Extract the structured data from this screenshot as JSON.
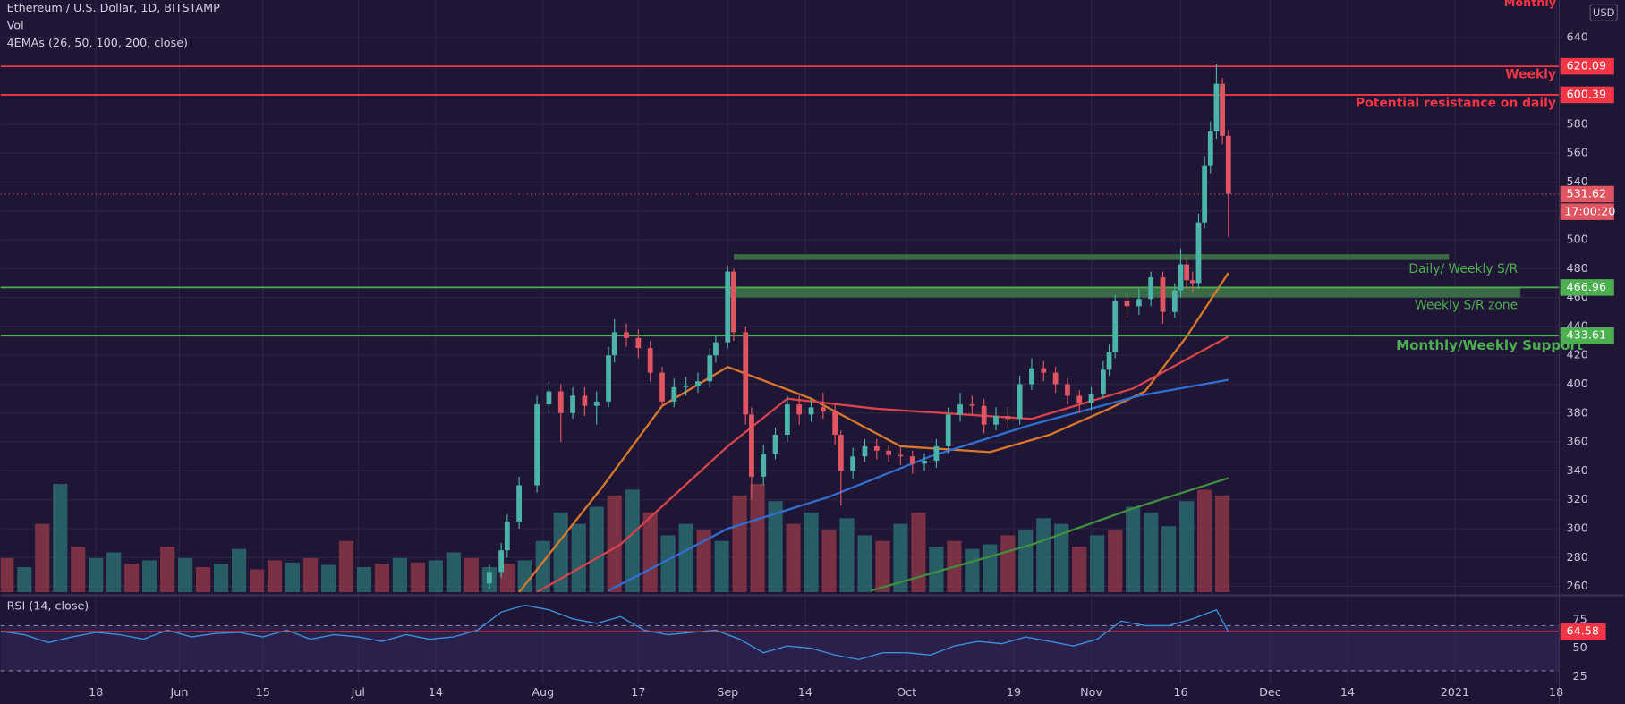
{
  "chart_data": [
    {
      "type": "candlestick",
      "title": "Ethereum / U.S. Dollar, 1D, BITSTAMP",
      "ema_label": "4EMAs (26, 50, 100, 200, close)",
      "currency": "USD",
      "countdown": "17:00:20",
      "xlim": [
        -16,
        245.5
      ],
      "ylim": [
        256,
        666
      ],
      "yticks": [
        260,
        280,
        300,
        320,
        340,
        360,
        380,
        400,
        420,
        440,
        460,
        480,
        500,
        520,
        540,
        560,
        580,
        600,
        620,
        640
      ],
      "grid": true,
      "up_color": "#4bb3a8",
      "down_color": "#e05561",
      "x": [
        66,
        68,
        69,
        71,
        74,
        76,
        78,
        80,
        82,
        84,
        86,
        87,
        89,
        91,
        93,
        95,
        97,
        99,
        101,
        103,
        104,
        106,
        107,
        109,
        110,
        112,
        114,
        116,
        118,
        120,
        122,
        124,
        125,
        127,
        129,
        131,
        133,
        135,
        137,
        139,
        141,
        143,
        145,
        147,
        149,
        151,
        153,
        155,
        157,
        159,
        161,
        163,
        165,
        167,
        169,
        170,
        171,
        173,
        175,
        177,
        179,
        181,
        182,
        183,
        184,
        185,
        186,
        187,
        188,
        189,
        190
      ],
      "open": [
        262,
        270,
        285,
        305,
        330,
        386,
        395,
        380,
        392,
        385,
        388,
        420,
        436,
        432,
        425,
        408,
        388,
        398,
        399,
        402,
        420,
        429,
        478,
        436,
        379,
        336,
        352,
        365,
        386,
        379,
        384,
        381,
        365,
        340,
        350,
        357,
        354,
        351,
        350,
        345,
        347,
        357,
        379,
        386,
        385,
        372,
        378,
        376,
        400,
        411,
        408,
        400,
        392,
        387,
        393,
        410,
        422,
        458,
        454,
        459,
        474,
        450,
        465,
        483,
        472,
        470,
        512,
        551,
        575,
        608,
        572
      ],
      "high": [
        275,
        290,
        310,
        336,
        392,
        402,
        400,
        398,
        398,
        395,
        426,
        445,
        442,
        438,
        430,
        412,
        404,
        405,
        408,
        425,
        434,
        482,
        480,
        440,
        384,
        358,
        370,
        392,
        392,
        390,
        394,
        386,
        368,
        356,
        362,
        362,
        358,
        356,
        354,
        352,
        362,
        384,
        394,
        392,
        390,
        384,
        384,
        406,
        418,
        416,
        412,
        404,
        396,
        398,
        416,
        428,
        462,
        462,
        466,
        478,
        478,
        470,
        494,
        488,
        478,
        518,
        558,
        582,
        622,
        612,
        576
      ],
      "low": [
        258,
        266,
        280,
        300,
        325,
        380,
        360,
        376,
        378,
        372,
        384,
        415,
        426,
        418,
        402,
        384,
        384,
        392,
        394,
        398,
        415,
        425,
        430,
        372,
        320,
        330,
        348,
        360,
        372,
        374,
        376,
        358,
        316,
        334,
        346,
        348,
        346,
        344,
        338,
        340,
        342,
        352,
        374,
        378,
        366,
        368,
        370,
        372,
        396,
        402,
        394,
        386,
        380,
        382,
        390,
        406,
        418,
        446,
        448,
        454,
        442,
        446,
        460,
        466,
        464,
        466,
        508,
        546,
        570,
        566,
        502
      ],
      "close": [
        270,
        285,
        305,
        330,
        386,
        395,
        380,
        392,
        385,
        388,
        420,
        436,
        432,
        425,
        408,
        388,
        398,
        399,
        402,
        420,
        429,
        478,
        436,
        379,
        336,
        352,
        365,
        386,
        379,
        384,
        381,
        365,
        340,
        350,
        357,
        354,
        351,
        350,
        345,
        347,
        357,
        379,
        386,
        385,
        372,
        378,
        376,
        400,
        411,
        408,
        400,
        392,
        387,
        393,
        410,
        422,
        458,
        454,
        459,
        474,
        450,
        465,
        483,
        472,
        470,
        512,
        551,
        575,
        608,
        572,
        532
      ],
      "volume": {
        "name": "Vol",
        "vlim": [
          0,
          100
        ],
        "up_color": "#2c6a70",
        "down_color": "#8a3647",
        "x": [
          -15,
          -12,
          -9,
          -6,
          -3,
          0,
          3,
          6,
          9,
          12,
          15,
          18,
          21,
          24,
          27,
          30,
          33,
          36,
          39,
          42,
          45,
          48,
          51,
          54,
          57,
          60,
          63,
          66,
          69,
          72,
          75,
          78,
          81,
          84,
          87,
          90,
          93,
          96,
          99,
          102,
          105,
          108,
          111,
          114,
          117,
          120,
          123,
          126,
          129,
          132,
          135,
          138,
          141,
          144,
          147,
          150,
          153,
          156,
          159,
          162,
          165,
          168,
          171,
          174,
          177,
          180,
          183,
          186,
          189
        ],
        "values": [
          30,
          22,
          60,
          95,
          40,
          30,
          35,
          25,
          28,
          40,
          30,
          22,
          25,
          38,
          20,
          28,
          26,
          30,
          24,
          45,
          22,
          25,
          30,
          26,
          28,
          35,
          30,
          22,
          25,
          28,
          45,
          70,
          60,
          75,
          85,
          90,
          70,
          50,
          60,
          55,
          45,
          85,
          95,
          80,
          60,
          70,
          55,
          65,
          50,
          45,
          60,
          70,
          40,
          45,
          38,
          42,
          50,
          55,
          65,
          60,
          40,
          50,
          55,
          75,
          70,
          58,
          80,
          90,
          85
        ],
        "up": [
          0,
          1,
          0,
          1,
          0,
          1,
          1,
          0,
          1,
          0,
          1,
          0,
          1,
          1,
          0,
          0,
          1,
          0,
          1,
          0,
          1,
          0,
          1,
          0,
          1,
          1,
          0,
          1,
          0,
          1,
          1,
          1,
          1,
          1,
          0,
          1,
          0,
          1,
          1,
          0,
          1,
          0,
          0,
          1,
          0,
          1,
          0,
          1,
          1,
          0,
          1,
          0,
          1,
          0,
          1,
          1,
          0,
          1,
          1,
          1,
          0,
          1,
          0,
          1,
          1,
          1,
          1,
          0,
          0
        ]
      },
      "emas": [
        {
          "color": "#d9782b",
          "x": [
            71,
            85,
            95,
            106,
            120,
            135,
            150,
            160,
            170,
            176,
            183,
            190
          ],
          "values": [
            256,
            329,
            385,
            412,
            390,
            357,
            353,
            365,
            383,
            395,
            433,
            477
          ]
        },
        {
          "color": "#d9434b",
          "x": [
            74,
            88,
            106,
            116,
            131,
            157,
            174,
            190
          ],
          "values": [
            256,
            289,
            357,
            390,
            383,
            376,
            397,
            433
          ]
        },
        {
          "color": "#2f6fd1",
          "x": [
            86,
            106,
            123,
            140,
            157,
            175,
            190
          ],
          "values": [
            257,
            300,
            322,
            350,
            372,
            392,
            403
          ]
        },
        {
          "color": "#3f8f3f",
          "x": [
            130,
            157,
            174,
            190
          ],
          "values": [
            257,
            289,
            314,
            335
          ]
        }
      ],
      "zones": [
        {
          "color": "#3f7a4a",
          "x": [
            107,
            227
          ],
          "y": [
            486,
            490
          ]
        },
        {
          "color": "#3f7a4a",
          "x": [
            106,
            239
          ],
          "y": [
            460,
            467
          ]
        }
      ],
      "levels": [
        {
          "value": 620.09,
          "color": "#f23645"
        },
        {
          "value": 600.39,
          "color": "#f23645"
        },
        {
          "value": 531.62,
          "color": "#e05561",
          "dotted": true
        },
        {
          "value": 466.96,
          "color": "#4caf50"
        },
        {
          "value": 433.61,
          "color": "#4caf50"
        }
      ],
      "annotations": [
        {
          "text": "Monthly",
          "color": "#f23645"
        },
        {
          "text": "Weekly",
          "color": "#f23645"
        },
        {
          "text": "Potential resistance on daily",
          "color": "#f23645"
        },
        {
          "text": "Daily/ Weekly S/R",
          "color": "#4caf50"
        },
        {
          "text": "Weekly S/R zone",
          "color": "#4caf50"
        },
        {
          "text": "Monthly/Weekly Support",
          "color": "#4caf50"
        }
      ]
    },
    {
      "type": "line",
      "title": "RSI (14, close)",
      "color": "#3b8fd9",
      "xlim": [
        -16,
        245.5
      ],
      "ylim": [
        19,
        95
      ],
      "yticks": [
        25,
        50,
        75
      ],
      "bands": [
        30,
        70
      ],
      "last_color": "#f23645",
      "xticks": [
        {
          "value": 0,
          "label": "18"
        },
        {
          "value": 14,
          "label": "Jun"
        },
        {
          "value": 28,
          "label": "15"
        },
        {
          "value": 44,
          "label": "Jul"
        },
        {
          "value": 57,
          "label": "14"
        },
        {
          "value": 75,
          "label": "Aug"
        },
        {
          "value": 91,
          "label": "17"
        },
        {
          "value": 106,
          "label": "Sep"
        },
        {
          "value": 119,
          "label": "14"
        },
        {
          "value": 136,
          "label": "Oct"
        },
        {
          "value": 154,
          "label": "19"
        },
        {
          "value": 167,
          "label": "Nov"
        },
        {
          "value": 182,
          "label": "16"
        },
        {
          "value": 197,
          "label": "Dec"
        },
        {
          "value": 210,
          "label": "14"
        },
        {
          "value": 228,
          "label": "2021"
        },
        {
          "value": 245,
          "label": "18"
        }
      ],
      "x": [
        -16,
        -12,
        -8,
        -4,
        0,
        4,
        8,
        12,
        16,
        20,
        24,
        28,
        32,
        36,
        40,
        44,
        48,
        52,
        56,
        60,
        64,
        68,
        72,
        76,
        80,
        84,
        88,
        92,
        96,
        100,
        104,
        108,
        112,
        116,
        120,
        124,
        128,
        132,
        136,
        140,
        144,
        148,
        152,
        156,
        160,
        164,
        168,
        172,
        176,
        180,
        184,
        188,
        190
      ],
      "values": [
        65,
        62,
        55,
        60,
        64,
        62,
        58,
        66,
        60,
        63,
        64,
        60,
        66,
        58,
        62,
        60,
        56,
        62,
        58,
        60,
        66,
        82,
        88,
        84,
        76,
        72,
        78,
        66,
        62,
        64,
        66,
        58,
        46,
        52,
        50,
        44,
        40,
        46,
        46,
        44,
        52,
        56,
        54,
        60,
        56,
        52,
        58,
        74,
        70,
        70,
        76,
        84,
        64.58
      ]
    }
  ]
}
